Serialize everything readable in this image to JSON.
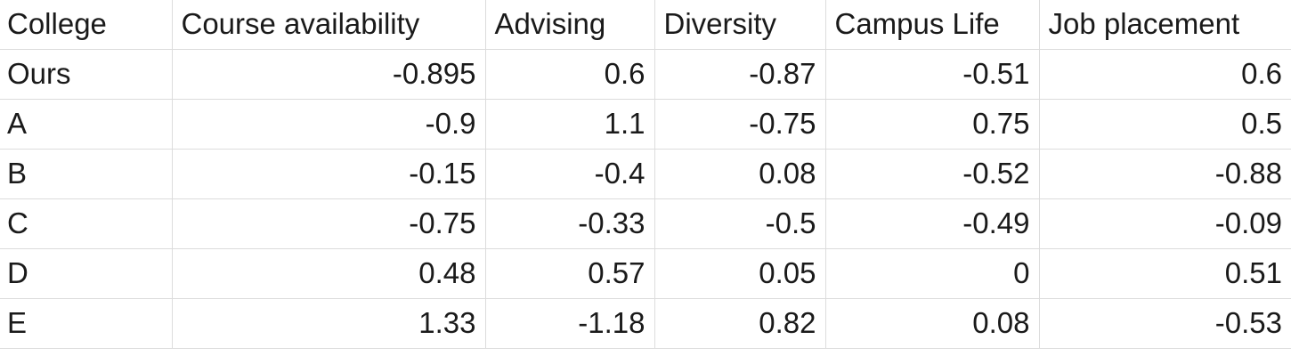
{
  "table": {
    "headers": [
      "College",
      "Course availability",
      "Advising",
      "Diversity",
      "Campus Life",
      "Job placement"
    ],
    "rows": [
      [
        "Ours",
        "-0.895",
        "0.6",
        "-0.87",
        "-0.51",
        "0.6"
      ],
      [
        "A",
        "-0.9",
        "1.1",
        "-0.75",
        "0.75",
        "0.5"
      ],
      [
        "B",
        "-0.15",
        "-0.4",
        "0.08",
        "-0.52",
        "-0.88"
      ],
      [
        "C",
        "-0.75",
        "-0.33",
        "-0.5",
        "-0.49",
        "-0.09"
      ],
      [
        "D",
        "0.48",
        "0.57",
        "0.05",
        "0",
        "0.51"
      ],
      [
        "E",
        "1.33",
        "-1.18",
        "0.82",
        "0.08",
        "-0.53"
      ]
    ]
  },
  "colors": {
    "gridline": "#dcdcdc",
    "text": "#1a1a1a",
    "background": "#ffffff"
  }
}
